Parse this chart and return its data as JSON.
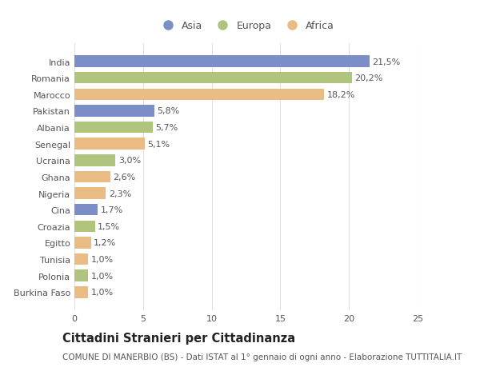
{
  "countries": [
    "India",
    "Romania",
    "Marocco",
    "Pakistan",
    "Albania",
    "Senegal",
    "Ucraina",
    "Ghana",
    "Nigeria",
    "Cina",
    "Croazia",
    "Egitto",
    "Tunisia",
    "Polonia",
    "Burkina Faso"
  ],
  "values": [
    21.5,
    20.2,
    18.2,
    5.8,
    5.7,
    5.1,
    3.0,
    2.6,
    2.3,
    1.7,
    1.5,
    1.2,
    1.0,
    1.0,
    1.0
  ],
  "labels": [
    "21,5%",
    "20,2%",
    "18,2%",
    "5,8%",
    "5,7%",
    "5,1%",
    "3,0%",
    "2,6%",
    "2,3%",
    "1,7%",
    "1,5%",
    "1,2%",
    "1,0%",
    "1,0%",
    "1,0%"
  ],
  "continents": [
    "Asia",
    "Europa",
    "Africa",
    "Asia",
    "Europa",
    "Africa",
    "Europa",
    "Africa",
    "Africa",
    "Asia",
    "Europa",
    "Africa",
    "Africa",
    "Europa",
    "Africa"
  ],
  "colors": {
    "Asia": "#7b8ec8",
    "Europa": "#b0c47e",
    "Africa": "#e8bc82"
  },
  "xlim": [
    0,
    25
  ],
  "xticks": [
    0,
    5,
    10,
    15,
    20,
    25
  ],
  "title": "Cittadini Stranieri per Cittadinanza",
  "subtitle": "COMUNE DI MANERBIO (BS) - Dati ISTAT al 1° gennaio di ogni anno - Elaborazione TUTTITALIA.IT",
  "bg_color": "#ffffff",
  "grid_color": "#e0e0e0",
  "bar_height": 0.7,
  "label_fontsize": 8,
  "tick_fontsize": 8,
  "title_fontsize": 10.5,
  "subtitle_fontsize": 7.5,
  "legend_labels": [
    "Asia",
    "Europa",
    "Africa"
  ],
  "legend_colors": [
    "#7b8ec8",
    "#b0c47e",
    "#e8bc82"
  ]
}
